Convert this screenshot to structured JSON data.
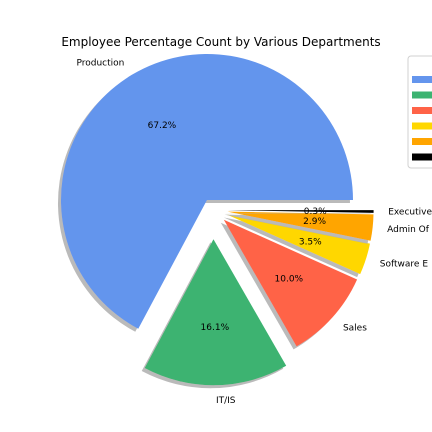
{
  "chart_data": {
    "type": "pie",
    "title": "Employee Percentage Count by Various Departments",
    "start_angle_deg": 0,
    "direction": "counterclockwise",
    "shadow": true,
    "legend": "right (clipped)",
    "slices": [
      {
        "label": "Production",
        "pct_label": "67.2%",
        "value": 67.2,
        "color": "#6495ED",
        "explode": 0.08
      },
      {
        "label": "IT/IS",
        "pct_label": "16.1%",
        "value": 16.1,
        "color": "#3CB371",
        "explode": 0.2
      },
      {
        "label": "Sales",
        "pct_label": "10.0%",
        "value": 10.0,
        "color": "#FF6347",
        "explode": 0.1
      },
      {
        "label": "Software E",
        "pct_label": "3.5%",
        "value": 3.5,
        "color": "#FFD700",
        "explode": 0.1
      },
      {
        "label": "Admin Of",
        "pct_label": "2.9%",
        "value": 2.9,
        "color": "#FFA500",
        "explode": 0.1
      },
      {
        "label": "Executive",
        "pct_label": "0.3%",
        "value": 0.3,
        "color": "#000000",
        "explode": 0.1
      }
    ]
  }
}
